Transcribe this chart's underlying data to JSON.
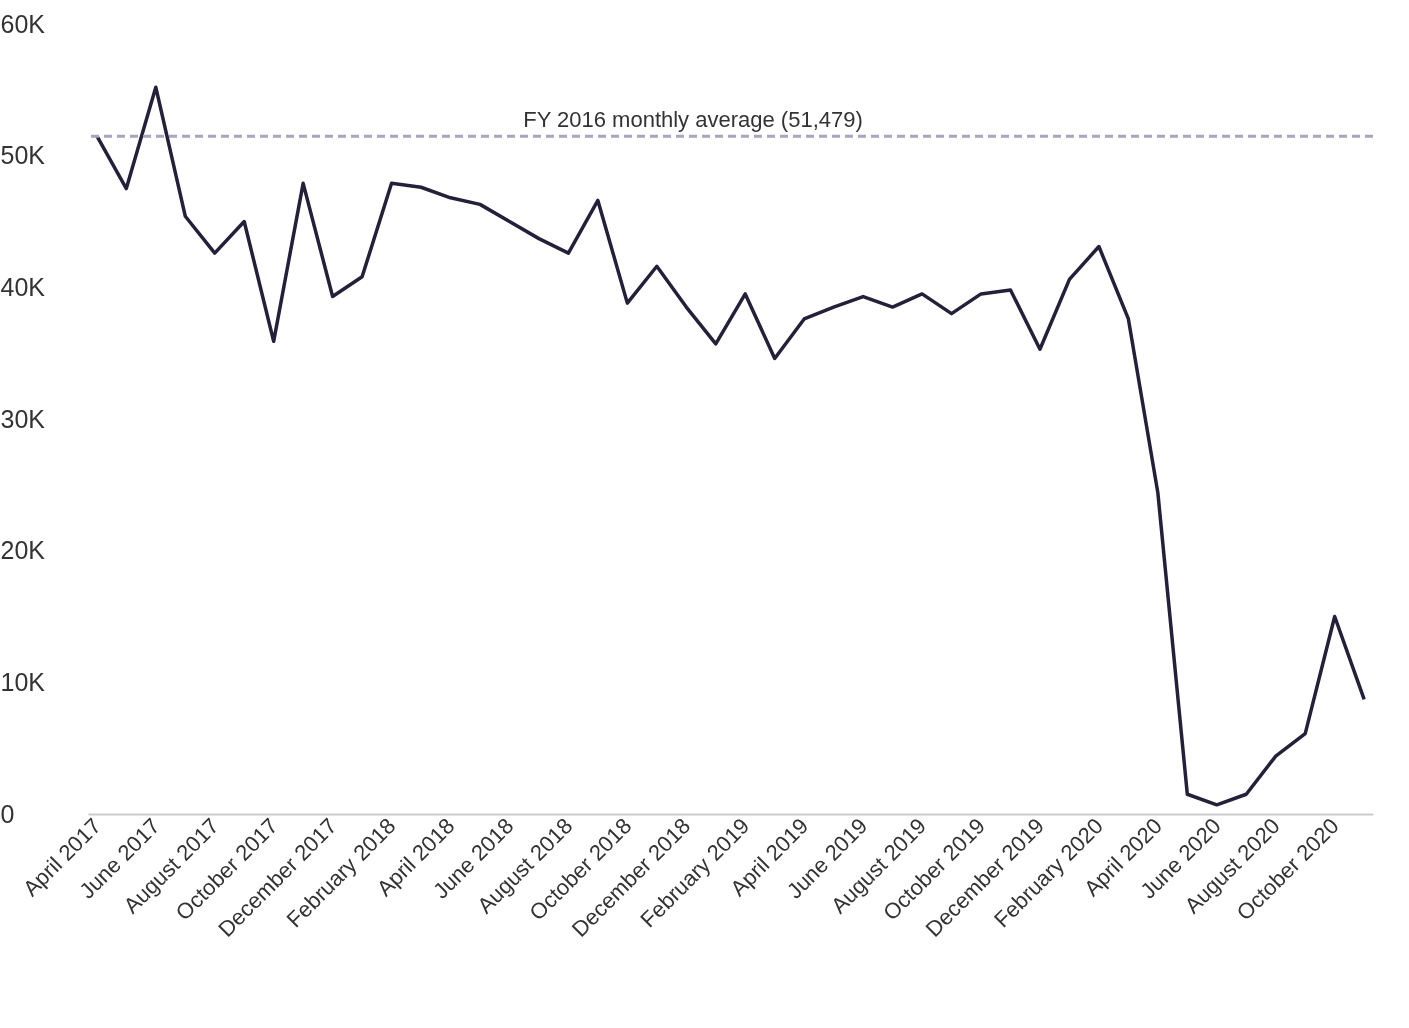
{
  "chart_data": {
    "type": "line",
    "categories": [
      "April 2017",
      null,
      "June 2017",
      null,
      "August 2017",
      null,
      "October 2017",
      null,
      "December 2017",
      null,
      "February 2018",
      null,
      "April 2018",
      null,
      "June 2018",
      null,
      "August 2018",
      null,
      "October 2018",
      null,
      "December 2018",
      null,
      "February 2019",
      null,
      "April 2019",
      null,
      "June 2019",
      null,
      "August 2019",
      null,
      "October 2019",
      null,
      "December 2019",
      null,
      "February 2020",
      null,
      "April 2020",
      null,
      "June 2020",
      null,
      "August 2020",
      null,
      "October 2020",
      null
    ],
    "series": [
      {
        "color": "#23203a",
        "values": [
          51500,
          47500,
          55200,
          45400,
          42600,
          45000,
          35900,
          47900,
          39300,
          40800,
          47900,
          47600,
          46800,
          46300,
          45000,
          43700,
          42600,
          46600,
          38800,
          41600,
          38500,
          35700,
          39500,
          34600,
          37600,
          38500,
          39300,
          38500,
          39500,
          38000,
          39500,
          39800,
          35300,
          40600,
          43100,
          37600,
          24400,
          1500,
          700,
          1500,
          4400,
          6100,
          15000,
          8700
        ]
      }
    ],
    "ylim": [
      0,
      60000
    ],
    "yticks": [
      {
        "value": 0,
        "label": "0"
      },
      {
        "value": 10000,
        "label": "10K"
      },
      {
        "value": 20000,
        "label": "20K"
      },
      {
        "value": 30000,
        "label": "30K"
      },
      {
        "value": 40000,
        "label": "40K"
      },
      {
        "value": 50000,
        "label": "50K"
      },
      {
        "value": 60000,
        "label": "60K"
      }
    ],
    "ref_lines": [
      {
        "axis": "y",
        "value": 51479,
        "label": "FY 2016 monthly average (51,479)",
        "color": "#a9a4bf",
        "line_style": "dashed"
      }
    ],
    "line_style": "solid",
    "marker": "none"
  }
}
